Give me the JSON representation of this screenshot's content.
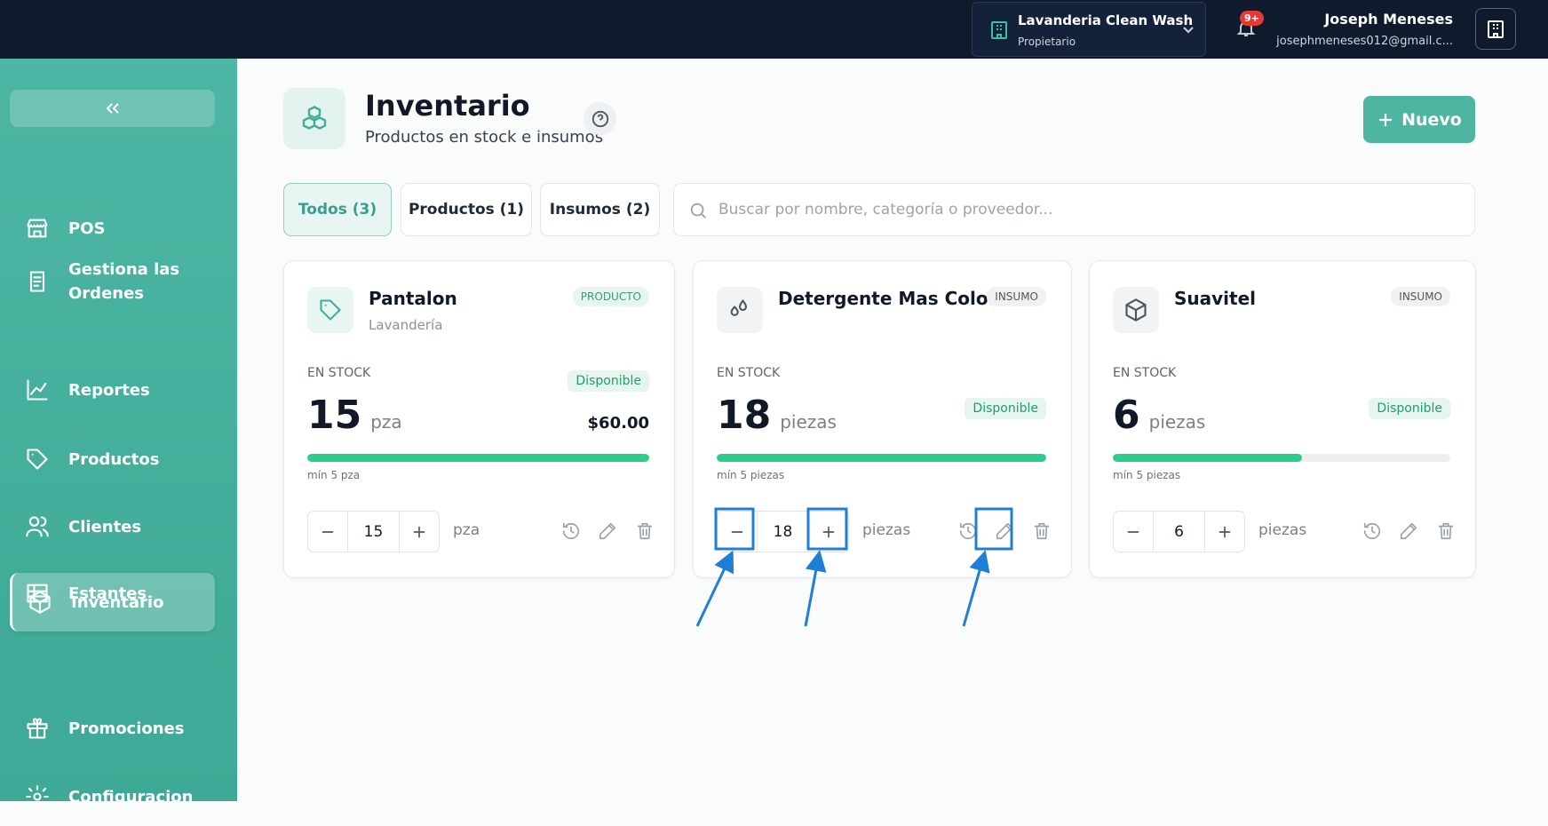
{
  "topbar": {
    "business": "Lavanderia Clean Wash",
    "role": "Propietario",
    "notifications": "9+",
    "user_name": "Joseph Meneses",
    "user_email": "josephmeneses012@gmail.c..."
  },
  "sidebar": {
    "items": [
      {
        "label": "POS"
      },
      {
        "label": "Gestiona las Ordenes"
      },
      {
        "label": "Reportes"
      },
      {
        "label": "Productos"
      },
      {
        "label": "Clientes"
      },
      {
        "label": "Estantes"
      },
      {
        "label": "Inventario",
        "active": true
      },
      {
        "label": "Promociones"
      },
      {
        "label": "Configuracion"
      }
    ]
  },
  "page": {
    "title": "Inventario",
    "subtitle": "Productos en stock e insumos",
    "new_button": "Nuevo"
  },
  "tabs": [
    {
      "label": "Todos (3)",
      "active": true
    },
    {
      "label": "Productos (1)"
    },
    {
      "label": "Insumos (2)"
    }
  ],
  "search_placeholder": "Buscar por nombre, categoría o proveedor...",
  "cards": [
    {
      "name": "Pantalon",
      "category": "Lavandería",
      "badge": "PRODUCTO",
      "stock_label": "EN STOCK",
      "quantity": 15,
      "unit": "pza",
      "status": "Disponible",
      "price": "$60.00",
      "minimum": "mín 5 pza",
      "stepper_value": 15,
      "stepper_unit": "pza"
    },
    {
      "name": "Detergente Mas Color",
      "badge": "INSUMO",
      "stock_label": "EN STOCK",
      "quantity": 18,
      "unit": "piezas",
      "status": "Disponible",
      "minimum": "mín 5 piezas",
      "stepper_value": 18,
      "stepper_unit": "piezas"
    },
    {
      "name": "Suavitel",
      "badge": "INSUMO",
      "stock_label": "EN STOCK",
      "quantity": 6,
      "unit": "piezas",
      "status": "Disponible",
      "minimum": "mín 5 piezas",
      "stepper_value": 6,
      "stepper_unit": "piezas"
    }
  ]
}
